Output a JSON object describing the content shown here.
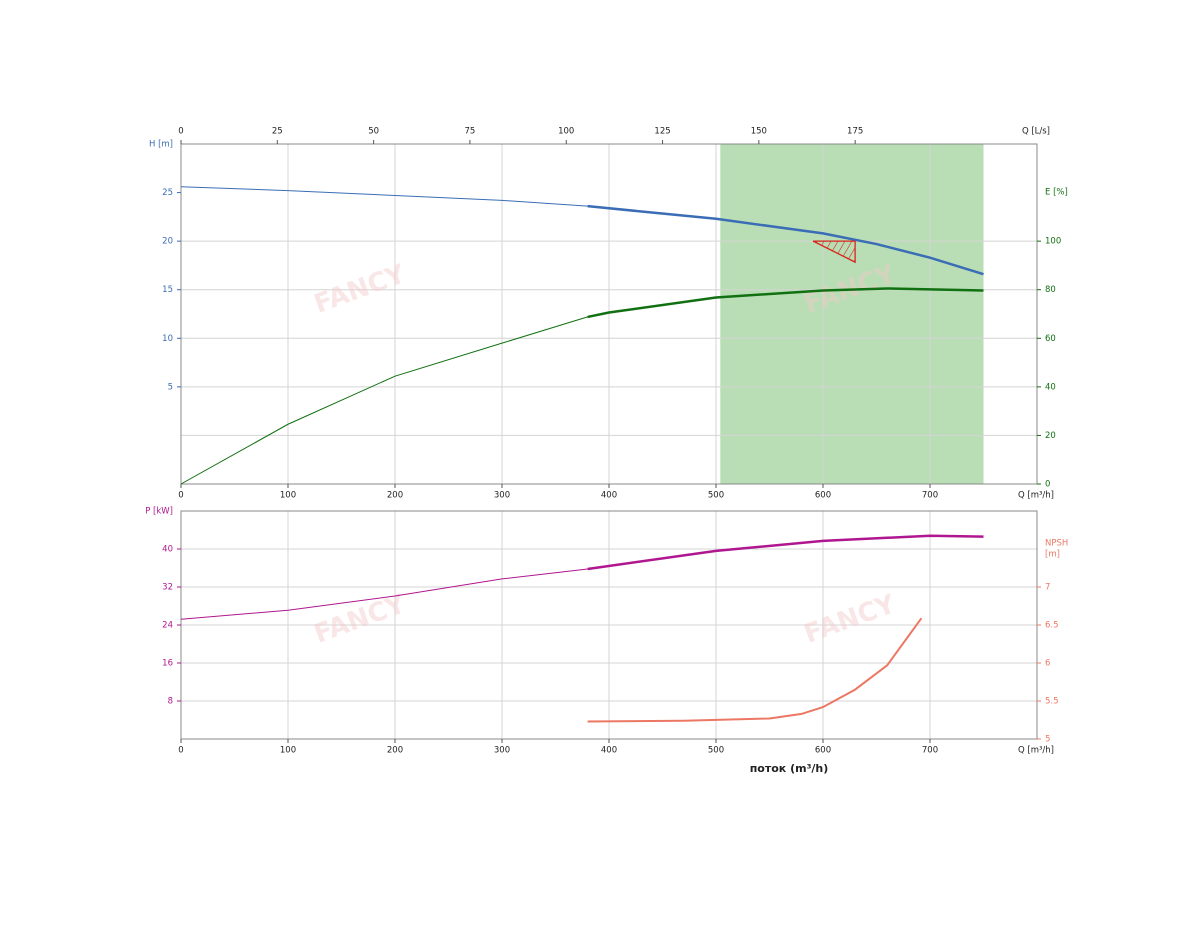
{
  "chart_data": [
    {
      "type": "line",
      "xlabel": "Q [m³/h]",
      "xlim": [
        0,
        800
      ],
      "xticks": [
        0,
        100,
        200,
        300,
        400,
        500,
        600,
        700
      ],
      "x2label": "Q [L/s]",
      "x2lim": [
        0,
        222.2
      ],
      "x2ticks": [
        0,
        25,
        50,
        75,
        100,
        125,
        150,
        175
      ],
      "ylabel": "H [m]",
      "ylim": [
        -5,
        30
      ],
      "yticks": [
        5,
        10,
        15,
        20,
        25
      ],
      "ycolor": "#3a6db5",
      "y2label": "E [%]",
      "y2lim": [
        0,
        140
      ],
      "y2ticks": [
        0,
        20,
        40,
        60,
        80,
        100
      ],
      "y2color": "#117011",
      "grid": true,
      "watermark": "FANCY",
      "shaded_range": [
        504,
        750
      ],
      "shaded_color": "#b9deb5",
      "duty_point": {
        "q": 630,
        "h": 20,
        "color": "#d8261b"
      },
      "series": [
        {
          "color": "#3a6db5",
          "bold_from": 380,
          "x": [
            0,
            100,
            200,
            300,
            380,
            500,
            600,
            650,
            700,
            750
          ],
          "values": [
            25.6,
            25.2,
            24.7,
            24.2,
            23.6,
            22.3,
            20.8,
            19.7,
            18.3,
            16.6
          ]
        },
        {
          "color": "#117011",
          "axis": "y2",
          "bold_from": 380,
          "x": [
            0,
            100,
            200,
            300,
            380,
            400,
            500,
            600,
            660,
            750
          ],
          "values": [
            0,
            24.6,
            44.4,
            58,
            68.8,
            70.6,
            76.8,
            79.7,
            80.5,
            79.7
          ]
        }
      ]
    },
    {
      "type": "line",
      "xlabel": "Q [m³/h]",
      "xlim": [
        0,
        800
      ],
      "xticks": [
        0,
        100,
        200,
        300,
        400,
        500,
        600,
        700
      ],
      "xtitle": "поток (m³/h)",
      "ylabel": "P [kW]",
      "ylim": [
        0,
        48
      ],
      "yticks": [
        8,
        16,
        24,
        32,
        40
      ],
      "ycolor": "#b0168f",
      "y2label": [
        "NPSH",
        "[m]"
      ],
      "y2lim": [
        5,
        8
      ],
      "y2ticks": [
        5,
        5.5,
        6,
        6.5,
        7
      ],
      "y2color": "#ec7763",
      "grid": true,
      "watermark": "FANCY",
      "series": [
        {
          "color": "#b0168f",
          "bold_from": 380,
          "x": [
            0,
            100,
            200,
            300,
            380,
            500,
            600,
            700,
            750
          ],
          "values": [
            25.2,
            27.1,
            30.1,
            33.7,
            35.8,
            39.6,
            41.7,
            42.8,
            42.6
          ]
        },
        {
          "color": "#ec7763",
          "axis": "y2",
          "width": 2,
          "x": [
            380,
            470,
            550,
            580,
            600,
            630,
            660,
            692
          ],
          "values": [
            5.23,
            5.24,
            5.27,
            5.33,
            5.42,
            5.65,
            5.97,
            6.59
          ]
        }
      ]
    }
  ]
}
